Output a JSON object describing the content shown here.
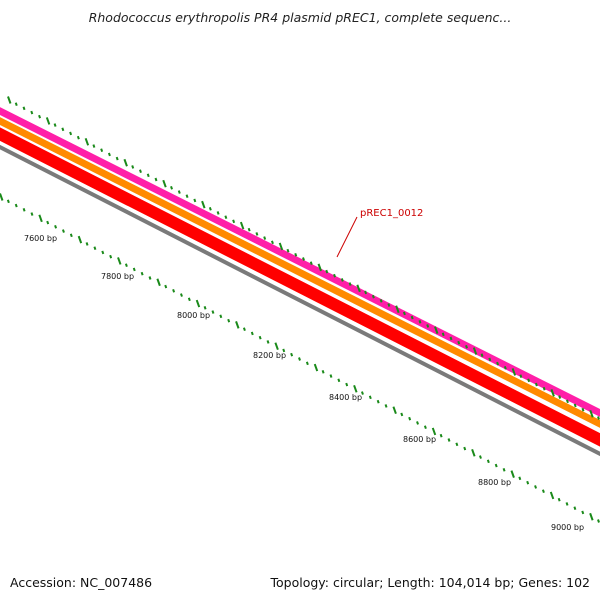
{
  "title": "Rhodococcus erythropolis PR4 plasmid pREC1, complete sequenc...",
  "accession": "Accession: NC_007486",
  "summary": "Topology: circular; Length: 104,014 bp; Genes: 102",
  "gene_label": "pREC1_0012",
  "tick_labels": [
    "7600 bp",
    "7800 bp",
    "8000 bp",
    "8200 bp",
    "8400 bp",
    "8600 bp",
    "8800 bp",
    "9000 bp"
  ],
  "colors": {
    "pink_track": "#ff1fa8",
    "orange_track": "#ff8a00",
    "red_track": "#ff0000",
    "gray_track": "#7a7a7a",
    "tick_marks": "#1a8a1a",
    "gene_label": "#cc0000"
  }
}
